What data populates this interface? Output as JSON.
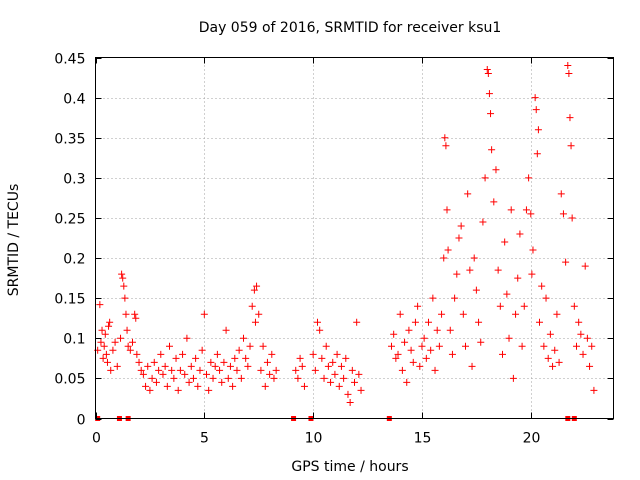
{
  "chart_data": {
    "type": "scatter",
    "title": "Day 059 of 2016, SRMTID for receiver ksu1",
    "xlabel": "GPS time / hours",
    "ylabel": "SRMTID / TECUs",
    "xlim": [
      0,
      23.8
    ],
    "ylim": [
      0,
      0.45
    ],
    "xticks": [
      0,
      5,
      10,
      15,
      20
    ],
    "xtick_labels": [
      "0",
      "5",
      "10",
      "15",
      "20"
    ],
    "yticks": [
      0,
      0.05,
      0.1,
      0.15,
      0.2,
      0.25,
      0.3,
      0.35,
      0.4,
      0.45
    ],
    "ytick_labels": [
      "0",
      "0.05",
      "0.1",
      "0.15",
      "0.2",
      "0.25",
      "0.3",
      "0.35",
      "0.4",
      "0.45"
    ],
    "grid": true,
    "marker": "+",
    "series_color": "#ff0000",
    "zero_markers_x": [
      0.1,
      1.1,
      1.5,
      9.1,
      9.9,
      13.5,
      21.7,
      22.0
    ],
    "series": [
      {
        "name": "SRMTID",
        "points": [
          [
            0.1,
            0.085
          ],
          [
            0.2,
            0.142
          ],
          [
            0.25,
            0.095
          ],
          [
            0.3,
            0.11
          ],
          [
            0.35,
            0.075
          ],
          [
            0.4,
            0.09
          ],
          [
            0.45,
            0.105
          ],
          [
            0.5,
            0.08
          ],
          [
            0.55,
            0.07
          ],
          [
            0.6,
            0.115
          ],
          [
            0.65,
            0.12
          ],
          [
            0.7,
            0.06
          ],
          [
            0.8,
            0.085
          ],
          [
            0.9,
            0.095
          ],
          [
            1.0,
            0.065
          ],
          [
            1.15,
            0.1
          ],
          [
            1.2,
            0.18
          ],
          [
            1.25,
            0.175
          ],
          [
            1.3,
            0.165
          ],
          [
            1.35,
            0.15
          ],
          [
            1.4,
            0.13
          ],
          [
            1.45,
            0.11
          ],
          [
            1.5,
            0.09
          ],
          [
            1.6,
            0.085
          ],
          [
            1.7,
            0.095
          ],
          [
            1.8,
            0.13
          ],
          [
            1.85,
            0.125
          ],
          [
            1.9,
            0.08
          ],
          [
            2.0,
            0.07
          ],
          [
            2.1,
            0.06
          ],
          [
            2.2,
            0.055
          ],
          [
            2.3,
            0.04
          ],
          [
            2.4,
            0.065
          ],
          [
            2.5,
            0.035
          ],
          [
            2.6,
            0.05
          ],
          [
            2.7,
            0.07
          ],
          [
            2.8,
            0.045
          ],
          [
            2.9,
            0.06
          ],
          [
            3.0,
            0.08
          ],
          [
            3.1,
            0.055
          ],
          [
            3.2,
            0.065
          ],
          [
            3.3,
            0.04
          ],
          [
            3.4,
            0.09
          ],
          [
            3.5,
            0.06
          ],
          [
            3.6,
            0.05
          ],
          [
            3.7,
            0.075
          ],
          [
            3.8,
            0.035
          ],
          [
            3.9,
            0.06
          ],
          [
            4.0,
            0.08
          ],
          [
            4.1,
            0.055
          ],
          [
            4.2,
            0.1
          ],
          [
            4.3,
            0.045
          ],
          [
            4.4,
            0.065
          ],
          [
            4.5,
            0.05
          ],
          [
            4.6,
            0.075
          ],
          [
            4.7,
            0.04
          ],
          [
            4.8,
            0.06
          ],
          [
            4.9,
            0.085
          ],
          [
            5.0,
            0.13
          ],
          [
            5.1,
            0.055
          ],
          [
            5.2,
            0.035
          ],
          [
            5.3,
            0.07
          ],
          [
            5.4,
            0.05
          ],
          [
            5.5,
            0.065
          ],
          [
            5.6,
            0.08
          ],
          [
            5.7,
            0.06
          ],
          [
            5.8,
            0.045
          ],
          [
            5.9,
            0.07
          ],
          [
            6.0,
            0.11
          ],
          [
            6.1,
            0.05
          ],
          [
            6.2,
            0.065
          ],
          [
            6.3,
            0.04
          ],
          [
            6.4,
            0.075
          ],
          [
            6.5,
            0.06
          ],
          [
            6.6,
            0.085
          ],
          [
            6.7,
            0.05
          ],
          [
            6.8,
            0.1
          ],
          [
            6.9,
            0.075
          ],
          [
            7.0,
            0.065
          ],
          [
            7.1,
            0.09
          ],
          [
            7.2,
            0.14
          ],
          [
            7.3,
            0.16
          ],
          [
            7.35,
            0.12
          ],
          [
            7.4,
            0.165
          ],
          [
            7.5,
            0.13
          ],
          [
            7.6,
            0.06
          ],
          [
            7.7,
            0.09
          ],
          [
            7.8,
            0.04
          ],
          [
            7.9,
            0.07
          ],
          [
            8.0,
            0.055
          ],
          [
            8.1,
            0.08
          ],
          [
            8.2,
            0.05
          ],
          [
            8.3,
            0.06
          ],
          [
            9.2,
            0.06
          ],
          [
            9.3,
            0.05
          ],
          [
            9.4,
            0.075
          ],
          [
            9.5,
            0.065
          ],
          [
            9.6,
            0.04
          ],
          [
            10.0,
            0.08
          ],
          [
            10.1,
            0.06
          ],
          [
            10.2,
            0.12
          ],
          [
            10.3,
            0.11
          ],
          [
            10.4,
            0.075
          ],
          [
            10.5,
            0.05
          ],
          [
            10.6,
            0.09
          ],
          [
            10.7,
            0.065
          ],
          [
            10.8,
            0.045
          ],
          [
            10.9,
            0.07
          ],
          [
            11.0,
            0.055
          ],
          [
            11.1,
            0.08
          ],
          [
            11.2,
            0.04
          ],
          [
            11.3,
            0.065
          ],
          [
            11.4,
            0.05
          ],
          [
            11.5,
            0.075
          ],
          [
            11.6,
            0.03
          ],
          [
            11.7,
            0.02
          ],
          [
            11.8,
            0.06
          ],
          [
            11.9,
            0.045
          ],
          [
            12.0,
            0.12
          ],
          [
            12.1,
            0.055
          ],
          [
            12.2,
            0.035
          ],
          [
            13.6,
            0.09
          ],
          [
            13.7,
            0.105
          ],
          [
            13.8,
            0.075
          ],
          [
            13.9,
            0.08
          ],
          [
            14.0,
            0.13
          ],
          [
            14.1,
            0.06
          ],
          [
            14.2,
            0.095
          ],
          [
            14.3,
            0.045
          ],
          [
            14.4,
            0.11
          ],
          [
            14.5,
            0.085
          ],
          [
            14.6,
            0.07
          ],
          [
            14.7,
            0.12
          ],
          [
            14.8,
            0.14
          ],
          [
            14.9,
            0.065
          ],
          [
            15.0,
            0.09
          ],
          [
            15.1,
            0.1
          ],
          [
            15.2,
            0.075
          ],
          [
            15.3,
            0.12
          ],
          [
            15.4,
            0.085
          ],
          [
            15.5,
            0.15
          ],
          [
            15.6,
            0.06
          ],
          [
            15.7,
            0.11
          ],
          [
            15.8,
            0.09
          ],
          [
            15.9,
            0.13
          ],
          [
            16.0,
            0.2
          ],
          [
            16.05,
            0.35
          ],
          [
            16.1,
            0.34
          ],
          [
            16.15,
            0.26
          ],
          [
            16.2,
            0.21
          ],
          [
            16.3,
            0.11
          ],
          [
            16.4,
            0.08
          ],
          [
            16.5,
            0.15
          ],
          [
            16.6,
            0.18
          ],
          [
            16.7,
            0.225
          ],
          [
            16.8,
            0.24
          ],
          [
            16.9,
            0.13
          ],
          [
            17.0,
            0.09
          ],
          [
            17.1,
            0.28
          ],
          [
            17.2,
            0.185
          ],
          [
            17.3,
            0.065
          ],
          [
            17.4,
            0.2
          ],
          [
            17.5,
            0.16
          ],
          [
            17.6,
            0.12
          ],
          [
            17.7,
            0.095
          ],
          [
            17.8,
            0.245
          ],
          [
            17.9,
            0.3
          ],
          [
            18.0,
            0.435
          ],
          [
            18.05,
            0.43
          ],
          [
            18.1,
            0.405
          ],
          [
            18.15,
            0.38
          ],
          [
            18.2,
            0.335
          ],
          [
            18.3,
            0.27
          ],
          [
            18.4,
            0.31
          ],
          [
            18.5,
            0.185
          ],
          [
            18.6,
            0.14
          ],
          [
            18.7,
            0.08
          ],
          [
            18.8,
            0.22
          ],
          [
            18.9,
            0.155
          ],
          [
            19.0,
            0.1
          ],
          [
            19.1,
            0.26
          ],
          [
            19.2,
            0.05
          ],
          [
            19.3,
            0.13
          ],
          [
            19.4,
            0.175
          ],
          [
            19.5,
            0.23
          ],
          [
            19.6,
            0.09
          ],
          [
            19.7,
            0.14
          ],
          [
            19.8,
            0.26
          ],
          [
            19.9,
            0.3
          ],
          [
            20.0,
            0.255
          ],
          [
            20.05,
            0.18
          ],
          [
            20.1,
            0.21
          ],
          [
            20.2,
            0.4
          ],
          [
            20.25,
            0.385
          ],
          [
            20.3,
            0.33
          ],
          [
            20.35,
            0.36
          ],
          [
            20.4,
            0.12
          ],
          [
            20.5,
            0.165
          ],
          [
            20.6,
            0.09
          ],
          [
            20.7,
            0.15
          ],
          [
            20.8,
            0.075
          ],
          [
            20.9,
            0.105
          ],
          [
            21.0,
            0.065
          ],
          [
            21.1,
            0.085
          ],
          [
            21.2,
            0.13
          ],
          [
            21.3,
            0.07
          ],
          [
            21.4,
            0.28
          ],
          [
            21.5,
            0.255
          ],
          [
            21.6,
            0.195
          ],
          [
            21.7,
            0.44
          ],
          [
            21.75,
            0.43
          ],
          [
            21.8,
            0.375
          ],
          [
            21.85,
            0.34
          ],
          [
            21.9,
            0.25
          ],
          [
            22.0,
            0.14
          ],
          [
            22.1,
            0.09
          ],
          [
            22.2,
            0.12
          ],
          [
            22.3,
            0.105
          ],
          [
            22.4,
            0.08
          ],
          [
            22.5,
            0.19
          ],
          [
            22.6,
            0.1
          ],
          [
            22.7,
            0.065
          ],
          [
            22.8,
            0.09
          ],
          [
            22.9,
            0.035
          ]
        ]
      }
    ]
  }
}
